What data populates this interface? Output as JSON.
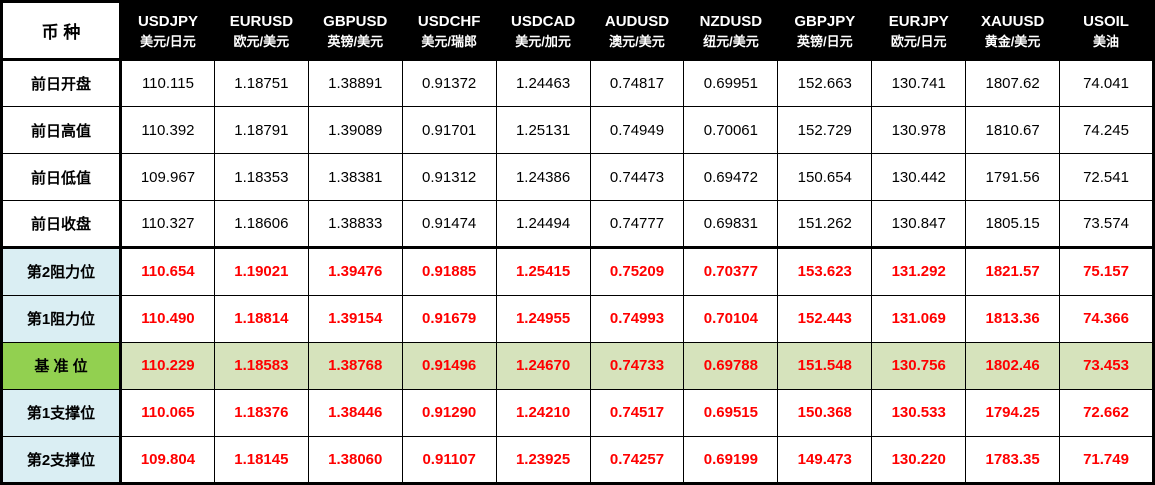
{
  "table": {
    "corner_label": "币 种",
    "columns": [
      {
        "symbol": "USDJPY",
        "name": "美元/日元"
      },
      {
        "symbol": "EURUSD",
        "name": "欧元/美元"
      },
      {
        "symbol": "GBPUSD",
        "name": "英镑/美元"
      },
      {
        "symbol": "USDCHF",
        "name": "美元/瑞郎"
      },
      {
        "symbol": "USDCAD",
        "name": "美元/加元"
      },
      {
        "symbol": "AUDUSD",
        "name": "澳元/美元"
      },
      {
        "symbol": "NZDUSD",
        "name": "纽元/美元"
      },
      {
        "symbol": "GBPJPY",
        "name": "英镑/日元"
      },
      {
        "symbol": "EURJPY",
        "name": "欧元/日元"
      },
      {
        "symbol": "XAUUSD",
        "name": "黄金/美元"
      },
      {
        "symbol": "USOIL",
        "name": "美油"
      }
    ],
    "rows": [
      {
        "label": "前日开盘",
        "style": "plain",
        "thick_top": false,
        "values": [
          "110.115",
          "1.18751",
          "1.38891",
          "0.91372",
          "1.24463",
          "0.74817",
          "0.69951",
          "152.663",
          "130.741",
          "1807.62",
          "74.041"
        ]
      },
      {
        "label": "前日高值",
        "style": "plain",
        "thick_top": false,
        "values": [
          "110.392",
          "1.18791",
          "1.39089",
          "0.91701",
          "1.25131",
          "0.74949",
          "0.70061",
          "152.729",
          "130.978",
          "1810.67",
          "74.245"
        ]
      },
      {
        "label": "前日低值",
        "style": "plain",
        "thick_top": false,
        "values": [
          "109.967",
          "1.18353",
          "1.38381",
          "0.91312",
          "1.24386",
          "0.74473",
          "0.69472",
          "150.654",
          "130.442",
          "1791.56",
          "72.541"
        ]
      },
      {
        "label": "前日收盘",
        "style": "plain",
        "thick_top": false,
        "values": [
          "110.327",
          "1.18606",
          "1.38833",
          "0.91474",
          "1.24494",
          "0.74777",
          "0.69831",
          "151.262",
          "130.847",
          "1805.15",
          "73.574"
        ]
      },
      {
        "label": "第2阻力位",
        "style": "level",
        "thick_top": true,
        "values": [
          "110.654",
          "1.19021",
          "1.39476",
          "0.91885",
          "1.25415",
          "0.75209",
          "0.70377",
          "153.623",
          "131.292",
          "1821.57",
          "75.157"
        ]
      },
      {
        "label": "第1阻力位",
        "style": "level",
        "thick_top": false,
        "values": [
          "110.490",
          "1.18814",
          "1.39154",
          "0.91679",
          "1.24955",
          "0.74993",
          "0.70104",
          "152.443",
          "131.069",
          "1813.36",
          "74.366"
        ]
      },
      {
        "label": "基 准 位",
        "style": "pivot",
        "thick_top": false,
        "values": [
          "110.229",
          "1.18583",
          "1.38768",
          "0.91496",
          "1.24670",
          "0.74733",
          "0.69788",
          "151.548",
          "130.756",
          "1802.46",
          "73.453"
        ]
      },
      {
        "label": "第1支撑位",
        "style": "level",
        "thick_top": false,
        "values": [
          "110.065",
          "1.18376",
          "1.38446",
          "0.91290",
          "1.24210",
          "0.74517",
          "0.69515",
          "150.368",
          "130.533",
          "1794.25",
          "72.662"
        ]
      },
      {
        "label": "第2支撑位",
        "style": "level",
        "thick_top": false,
        "values": [
          "109.804",
          "1.18145",
          "1.38060",
          "0.91107",
          "1.23925",
          "0.74257",
          "0.69199",
          "149.473",
          "130.220",
          "1783.35",
          "71.749"
        ]
      }
    ],
    "colors": {
      "header_bg": "#000000",
      "header_text": "#ffffff",
      "level_label_bg": "#daeef3",
      "pivot_label_bg": "#92d050",
      "pivot_row_bg": "#d6e3bc",
      "value_red": "#ff0000",
      "border": "#000000"
    }
  }
}
